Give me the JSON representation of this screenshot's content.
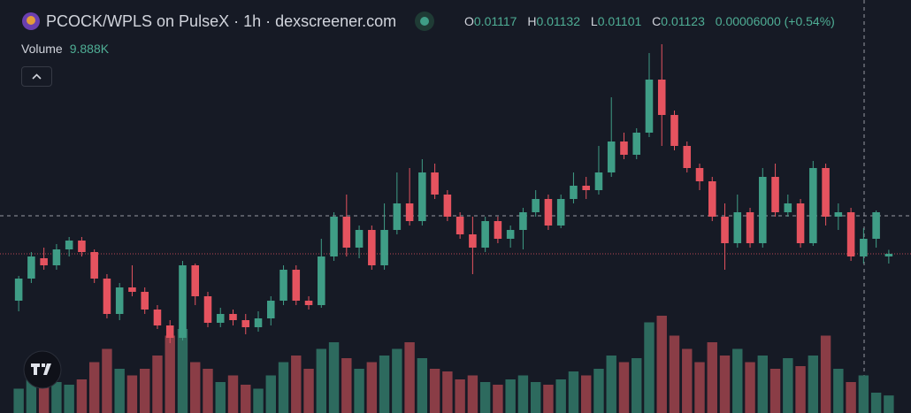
{
  "chart_data": {
    "type": "candlestick",
    "title": "PCOCK/WPLS on PulseX · 1h · dexscreener.com",
    "ohlc_labels": [
      "O",
      "H",
      "L",
      "C"
    ],
    "change_label": "0.00006000 (+0.54%)",
    "volume_title": "Volume",
    "volume_label": "9.888K",
    "open": [
      0.01017,
      0.01067,
      0.01113,
      0.01097,
      0.01133,
      0.01153,
      0.01127,
      0.01067,
      0.00987,
      0.01047,
      0.01037,
      0.00997,
      0.00961,
      0.00933,
      0.01097,
      0.01027,
      0.00967,
      0.00987,
      0.00973,
      0.00957,
      0.00977,
      0.01017,
      0.01087,
      0.01017,
      0.01007,
      0.01117,
      0.01207,
      0.01137,
      0.01177,
      0.01097,
      0.01177,
      0.01237,
      0.01197,
      0.01307,
      0.01257,
      0.01207,
      0.01167,
      0.01137,
      0.01197,
      0.01157,
      0.01177,
      0.01217,
      0.01247,
      0.01187,
      0.01247,
      0.01277,
      0.01267,
      0.01307,
      0.01377,
      0.01347,
      0.01397,
      0.01517,
      0.01437,
      0.01367,
      0.01317,
      0.01287,
      0.01207,
      0.01147,
      0.01217,
      0.01147,
      0.01297,
      0.01217,
      0.01237,
      0.01147,
      0.01317,
      0.01207,
      0.01217,
      0.01117,
      0.01157,
      0.01117
    ],
    "high": [
      0.01073,
      0.01127,
      0.01137,
      0.01145,
      0.01161,
      0.01161,
      0.01133,
      0.01077,
      0.01057,
      0.01097,
      0.01047,
      0.01007,
      0.00973,
      0.01107,
      0.01101,
      0.01037,
      0.01001,
      0.00997,
      0.00987,
      0.00993,
      0.01027,
      0.01097,
      0.01097,
      0.01027,
      0.01157,
      0.01217,
      0.01257,
      0.01187,
      0.01187,
      0.01237,
      0.01307,
      0.01317,
      0.01337,
      0.01327,
      0.01267,
      0.01217,
      0.01207,
      0.01207,
      0.01207,
      0.01187,
      0.01227,
      0.01267,
      0.01257,
      0.01257,
      0.01307,
      0.01297,
      0.01367,
      0.01477,
      0.01397,
      0.01407,
      0.01577,
      0.01597,
      0.01447,
      0.01377,
      0.01327,
      0.01297,
      0.01237,
      0.01257,
      0.01227,
      0.01317,
      0.01327,
      0.01257,
      0.01247,
      0.01333,
      0.01327,
      0.01237,
      0.01227,
      0.01181,
      0.01221,
      0.01132
    ],
    "low": [
      0.00993,
      0.01057,
      0.01087,
      0.01087,
      0.01117,
      0.01117,
      0.01057,
      0.00977,
      0.00973,
      0.01027,
      0.00987,
      0.00953,
      0.00921,
      0.00927,
      0.01007,
      0.00957,
      0.00957,
      0.00961,
      0.00941,
      0.00947,
      0.00961,
      0.01007,
      0.01007,
      0.00997,
      0.01001,
      0.01107,
      0.01117,
      0.01113,
      0.01087,
      0.01087,
      0.01167,
      0.01187,
      0.01187,
      0.01247,
      0.01197,
      0.01157,
      0.01077,
      0.01127,
      0.01147,
      0.01137,
      0.01133,
      0.01207,
      0.01177,
      0.01181,
      0.01237,
      0.01247,
      0.01257,
      0.01297,
      0.01337,
      0.01337,
      0.01387,
      0.01367,
      0.01357,
      0.01307,
      0.01267,
      0.01197,
      0.01087,
      0.01137,
      0.01137,
      0.01137,
      0.01207,
      0.01207,
      0.01137,
      0.01141,
      0.01187,
      0.01177,
      0.01107,
      0.01101,
      0.01137,
      0.01101
    ],
    "close": [
      0.01067,
      0.01117,
      0.01097,
      0.01133,
      0.01153,
      0.01127,
      0.01067,
      0.00987,
      0.01047,
      0.01037,
      0.00997,
      0.00961,
      0.00933,
      0.01097,
      0.01027,
      0.00967,
      0.00987,
      0.00973,
      0.00957,
      0.00977,
      0.01017,
      0.01087,
      0.01017,
      0.01007,
      0.01117,
      0.01207,
      0.01137,
      0.01177,
      0.01097,
      0.01177,
      0.01237,
      0.01197,
      0.01307,
      0.01257,
      0.01207,
      0.01167,
      0.01137,
      0.01197,
      0.01157,
      0.01177,
      0.01217,
      0.01247,
      0.01187,
      0.01247,
      0.01277,
      0.01267,
      0.01307,
      0.01377,
      0.01347,
      0.01397,
      0.01517,
      0.01437,
      0.01367,
      0.01317,
      0.01287,
      0.01207,
      0.01147,
      0.01217,
      0.01147,
      0.01297,
      0.01217,
      0.01237,
      0.01147,
      0.01317,
      0.01207,
      0.01217,
      0.01117,
      0.01157,
      0.01217,
      0.01123
    ],
    "volume": [
      15000,
      25000,
      30000,
      20000,
      18000,
      22000,
      35000,
      45000,
      30000,
      25000,
      30000,
      40000,
      55000,
      60000,
      35000,
      30000,
      20000,
      25000,
      18000,
      15000,
      25000,
      35000,
      40000,
      30000,
      45000,
      50000,
      38000,
      30000,
      35000,
      40000,
      45000,
      50000,
      38000,
      30000,
      28000,
      22000,
      25000,
      20000,
      18000,
      22000,
      25000,
      20000,
      18000,
      22000,
      28000,
      25000,
      30000,
      40000,
      35000,
      38000,
      65000,
      70000,
      55000,
      45000,
      35000,
      50000,
      40000,
      45000,
      35000,
      40000,
      30000,
      38000,
      32000,
      40000,
      55000,
      30000,
      20000,
      25000,
      12000,
      9888
    ],
    "ylim": [
      0.00763,
      0.01697
    ],
    "volume_lim": [
      0,
      80000
    ],
    "up_color": "#3f9d86",
    "down_color": "#e5535f",
    "volume_up_color": "#2d6a5e",
    "volume_down_color": "#8a3d46"
  }
}
